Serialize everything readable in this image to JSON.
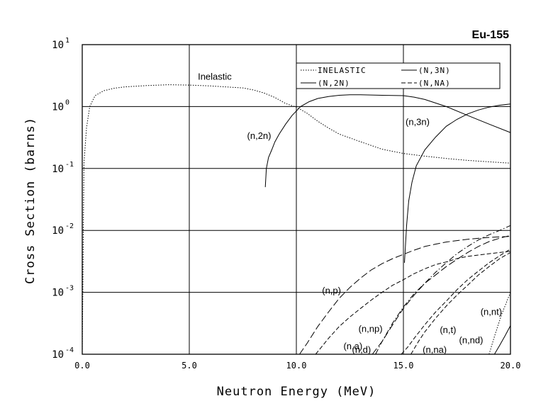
{
  "chart_data": {
    "type": "line",
    "title": "Eu-155",
    "xlabel": "Neutron Energy (MeV)",
    "ylabel": "Cross Section (barns)",
    "xlim": [
      0,
      20
    ],
    "ylim": [
      0.0001,
      10
    ],
    "yscale": "log",
    "x_ticks": [
      {
        "value": 0,
        "label": "0.0"
      },
      {
        "value": 5,
        "label": "5.0"
      },
      {
        "value": 10,
        "label": "10.0"
      },
      {
        "value": 15,
        "label": "15.0"
      },
      {
        "value": 20,
        "label": "20.0"
      }
    ],
    "y_ticks": [
      {
        "value": 0.0001,
        "mantissa": "10",
        "exp": "-4"
      },
      {
        "value": 0.001,
        "mantissa": "10",
        "exp": "-3"
      },
      {
        "value": 0.01,
        "mantissa": "10",
        "exp": "-2"
      },
      {
        "value": 0.1,
        "mantissa": "10",
        "exp": "-1"
      },
      {
        "value": 1,
        "mantissa": "10",
        "exp": "0"
      },
      {
        "value": 10,
        "mantissa": "10",
        "exp": "1"
      }
    ],
    "grid": true,
    "legend_position": "top-right",
    "legend": [
      {
        "label": "INELASTIC",
        "style": "dotted"
      },
      {
        "label": "(N,3N)",
        "style": "solid"
      },
      {
        "label": "(N,2N)",
        "style": "solid"
      },
      {
        "label": "(N,NA)",
        "style": "dashed"
      }
    ],
    "series": [
      {
        "name": "inelastic",
        "label": "Inelastic",
        "style": "dotted",
        "x": [
          0.0,
          0.08,
          0.2,
          0.35,
          0.6,
          1,
          1.5,
          2,
          3,
          4,
          5,
          6,
          7,
          7.5,
          8,
          8.5,
          9,
          9.5,
          10,
          10.5,
          11,
          11.5,
          12,
          13,
          14,
          15,
          16,
          17,
          18,
          19,
          20
        ],
        "y": [
          0.0001,
          0.12,
          0.45,
          1.0,
          1.5,
          1.8,
          1.98,
          2.08,
          2.18,
          2.25,
          2.22,
          2.15,
          2.05,
          2.0,
          1.85,
          1.65,
          1.4,
          1.12,
          0.98,
          0.78,
          0.58,
          0.45,
          0.36,
          0.27,
          0.205,
          0.175,
          0.158,
          0.145,
          0.135,
          0.128,
          0.122
        ]
      },
      {
        "name": "n2n",
        "label": "(n,2n)",
        "style": "solid",
        "x": [
          8.55,
          8.6,
          8.7,
          8.85,
          9.0,
          9.2,
          9.5,
          9.8,
          10.2,
          10.6,
          11,
          11.5,
          12,
          12.5,
          13,
          14,
          15,
          15.5,
          16,
          17,
          18,
          19,
          20
        ],
        "y": [
          0.05,
          0.1,
          0.15,
          0.2,
          0.27,
          0.36,
          0.52,
          0.72,
          1.0,
          1.2,
          1.35,
          1.45,
          1.52,
          1.55,
          1.55,
          1.52,
          1.5,
          1.42,
          1.3,
          1.0,
          0.72,
          0.52,
          0.38
        ]
      },
      {
        "name": "n3n",
        "label": "(n,3n)",
        "style": "solid",
        "x": [
          15.05,
          15.1,
          15.15,
          15.25,
          15.4,
          15.6,
          16,
          16.5,
          17,
          17.5,
          18,
          18.5,
          19,
          19.5,
          20
        ],
        "y": [
          0.003,
          0.006,
          0.012,
          0.03,
          0.06,
          0.11,
          0.2,
          0.32,
          0.48,
          0.62,
          0.76,
          0.88,
          0.98,
          1.05,
          1.1
        ]
      },
      {
        "name": "np_mid",
        "label": "(n,p)",
        "style": "longdash",
        "x": [
          10.15,
          10.5,
          11,
          11.5,
          12,
          12.5,
          13,
          13.5,
          14,
          14.5,
          15,
          15.5,
          16,
          16.5,
          17,
          18,
          19,
          20
        ],
        "y": [
          0.0001,
          0.00015,
          0.00028,
          0.00048,
          0.0008,
          0.0012,
          0.0017,
          0.0023,
          0.0029,
          0.0035,
          0.0041,
          0.0048,
          0.0055,
          0.006,
          0.0065,
          0.0072,
          0.0077,
          0.008
        ]
      },
      {
        "name": "na_mid",
        "label": "(n,a)",
        "style": "dashed",
        "x": [
          10.9,
          11.5,
          12,
          12.5,
          13,
          13.5,
          14,
          14.5,
          15,
          15.5,
          16,
          16.5,
          17,
          17.5,
          18,
          18.5,
          19,
          19.5,
          20
        ],
        "y": [
          0.0001,
          0.00018,
          0.00028,
          0.0004,
          0.00055,
          0.00075,
          0.001,
          0.0013,
          0.0016,
          0.002,
          0.0024,
          0.0028,
          0.0031,
          0.0035,
          0.0038,
          0.004,
          0.0042,
          0.0044,
          0.0046
        ]
      },
      {
        "name": "nnp",
        "label": "(n,np)",
        "style": "dashdot",
        "x": [
          13.7,
          14,
          14.5,
          15,
          15.5,
          16,
          16.5,
          17,
          17.5,
          18,
          18.5,
          19,
          19.5,
          20
        ],
        "y": [
          0.0001,
          0.00016,
          0.00032,
          0.00058,
          0.00095,
          0.0014,
          0.0021,
          0.003,
          0.0042,
          0.0055,
          0.007,
          0.0085,
          0.01,
          0.012
        ]
      },
      {
        "name": "nd",
        "label": "(n,d)",
        "style": "longdash",
        "x": [
          13.55,
          14,
          14.5,
          15,
          15.5,
          16,
          16.5,
          17,
          17.5,
          18,
          18.5,
          19,
          19.5,
          20
        ],
        "y": [
          0.0001,
          0.00016,
          0.0003,
          0.00055,
          0.0009,
          0.0014,
          0.0019,
          0.0026,
          0.0034,
          0.0044,
          0.0055,
          0.0066,
          0.0075,
          0.0083
        ]
      },
      {
        "name": "nt",
        "label": "(n,t)",
        "style": "dashed",
        "x": [
          15.35,
          15.7,
          16,
          16.5,
          17,
          17.5,
          18,
          18.5,
          19,
          19.5,
          20
        ],
        "y": [
          0.0001,
          0.00016,
          0.00023,
          0.00038,
          0.0006,
          0.0009,
          0.0013,
          0.0019,
          0.0026,
          0.0035,
          0.0044
        ]
      },
      {
        "name": "nna",
        "label": "(n,na)",
        "style": "dashed",
        "x": [
          14.9,
          15.2,
          15.5,
          16,
          16.5,
          17,
          17.5,
          18,
          18.5,
          19,
          19.5,
          20
        ],
        "y": [
          0.0001,
          0.00013,
          0.00018,
          0.0003,
          0.00048,
          0.00072,
          0.0011,
          0.0016,
          0.0022,
          0.003,
          0.0039,
          0.005
        ]
      },
      {
        "name": "nnt",
        "label": "(n,nt)",
        "style": "dotted",
        "x": [
          19.0,
          19.3,
          19.6,
          20
        ],
        "y": [
          0.0001,
          0.00022,
          0.00045,
          0.001
        ]
      },
      {
        "name": "nnd",
        "label": "(n,nd)",
        "style": "solid",
        "x": [
          19.25,
          19.5,
          19.75,
          20
        ],
        "y": [
          0.0001,
          0.00014,
          0.0002,
          0.00029
        ]
      }
    ],
    "annotations": [
      {
        "text": "Inelastic",
        "x": 5.4,
        "y": 2.7
      },
      {
        "text": "(n,2n)",
        "x": 7.7,
        "y": 0.3
      },
      {
        "text": "(n,3n)",
        "x": 15.1,
        "y": 0.5
      },
      {
        "text": "(n,p)",
        "x": 11.2,
        "y": 0.00095
      },
      {
        "text": "(n,a)",
        "x": 12.2,
        "y": 0.00012
      },
      {
        "text": "(n,np)",
        "x": 12.9,
        "y": 0.00023
      },
      {
        "text": "(n,d)",
        "x": 12.6,
        "y": 0.000105
      },
      {
        "text": "(n,t)",
        "x": 16.7,
        "y": 0.00022
      },
      {
        "text": "(n,na)",
        "x": 15.9,
        "y": 0.000105
      },
      {
        "text": "(n,nt)",
        "x": 18.6,
        "y": 0.00043
      },
      {
        "text": "(n,nd)",
        "x": 17.6,
        "y": 0.00015
      }
    ]
  }
}
